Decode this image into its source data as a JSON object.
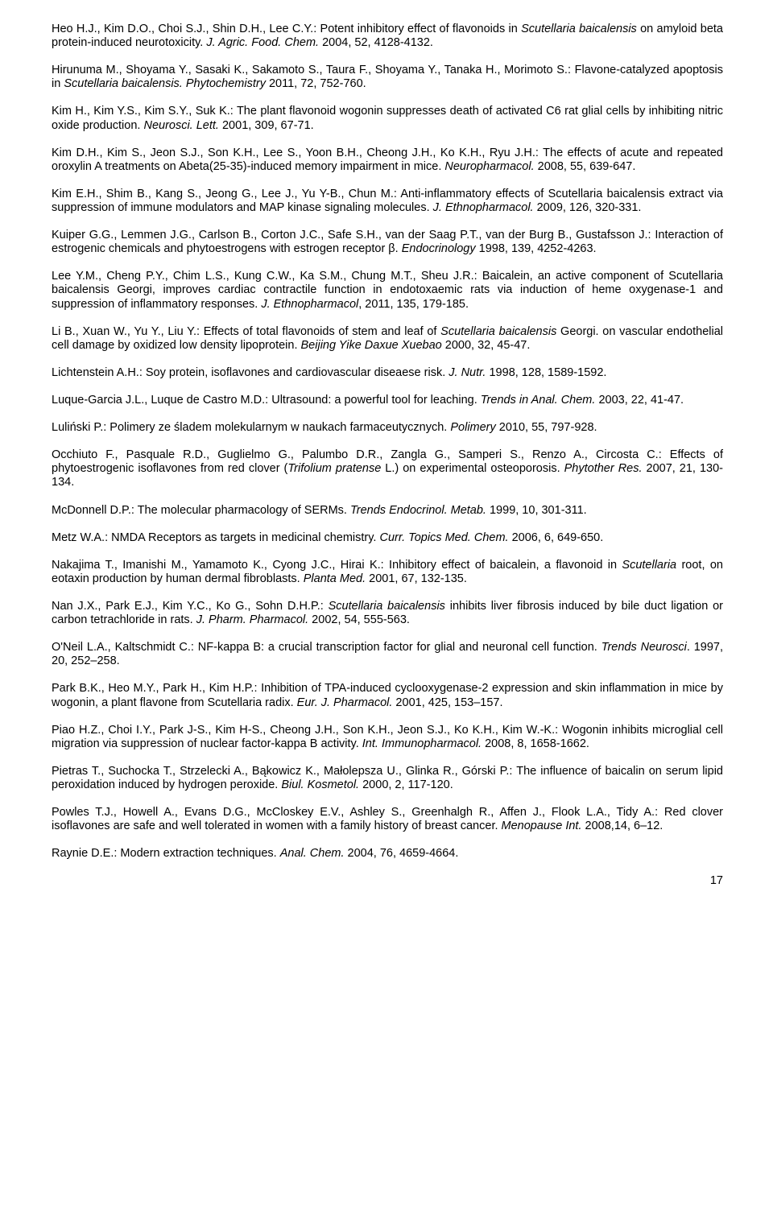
{
  "refs": [
    {
      "html": "Heo H.J., Kim D.O., Choi S.J., Shin D.H., Lee C.Y.: Potent inhibitory effect of flavonoids in <span class='italic'>Scutellaria baicalensis</span> on amyloid beta protein-induced neurotoxicity. <span class='italic'>J. Agric. Food. Chem.</span> 2004, 52, 4128-4132."
    },
    {
      "html": "Hirunuma M., Shoyama Y., Sasaki K., Sakamoto S., Taura F., Shoyama Y., Tanaka H., Morimoto S.: Flavone-catalyzed apoptosis in <span class='italic'>Scutellaria baicalensis. Phytochemistry</span> 2011, 72, 752-760."
    },
    {
      "html": "Kim H., Kim Y.S., Kim S.Y., Suk K.: The plant flavonoid wogonin suppresses death of activated C6 rat glial cells by inhibiting nitric oxide production. <span class='italic'>Neurosci. Lett.</span> 2001, 309, 67-71."
    },
    {
      "html": "Kim D.H., Kim S., Jeon S.J., Son K.H., Lee S., Yoon B.H., Cheong J.H., Ko K.H., Ryu J.H.: The effects of acute and repeated oroxylin A treatments on Abeta(25-35)-induced memory impairment in mice. <span class='italic'>Neuropharmacol.</span> 2008, 55, 639-647."
    },
    {
      "html": "Kim E.H., Shim B., Kang S., Jeong G., Lee J., Yu Y-B., Chun M.: Anti-inflammatory effects of Scutellaria baicalensis extract via suppression of immune modulators and MAP kinase signaling molecules. <span class='italic'>J. Ethnopharmacol.</span> 2009, 126, 320-331."
    },
    {
      "html": "Kuiper G.G., Lemmen J.G., Carlson B., Corton J.C., Safe S.H., van der Saag P.T., van der Burg B., Gustafsson J.: Interaction of estrogenic chemicals and phytoestrogens with estrogen receptor β. <span class='italic'>Endocrinology</span> 1998, 139, 4252-4263."
    },
    {
      "html": "Lee Y.M., Cheng P.Y., Chim L.S., Kung C.W., Ka S.M., Chung M.T., Sheu J.R.: Baicalein, an active component of Scutellaria baicalensis Georgi, improves cardiac contractile function in endotoxaemic rats via induction of heme oxygenase-1 and suppression of inflammatory responses. <span class='italic'>J. Ethnopharmacol</span>, 2011, 135, 179-185."
    },
    {
      "html": "Li B., Xuan W., Yu Y., Liu Y.: Effects of total flavonoids of stem and leaf of <span class='italic'>Scutellaria baicalensis</span> Georgi. on vascular endothelial cell damage by oxidized low density lipoprotein. <span class='italic'>Beijing Yike Daxue Xuebao</span> 2000, 32, 45-47."
    },
    {
      "html": "Lichtenstein A.H.: Soy protein, isoflavones and cardiovascular diseaese risk. <span class='italic'>J. Nutr.</span> 1998, 128, 1589-1592."
    },
    {
      "html": "Luque-Garcia J.L., Luque de Castro M.D.: Ultrasound: a powerful tool for leaching. <span class='italic'>Trends in Anal. Chem.</span>  2003, 22, 41-47."
    },
    {
      "html": "Luliński P.: Polimery ze śladem molekularnym w naukach farmaceutycznych. <span class='italic'>Polimery</span> 2010, 55, 797-928."
    },
    {
      "html": "Occhiuto F., Pasquale R.D., Guglielmo G., Palumbo D.R., Zangla G., Samperi S., Renzo A., Circosta C.: Effects of phytoestrogenic isoflavones from red clover (<span class='italic'>Trifolium pratense</span> L.) on experimental osteoporosis. <span class='italic'>Phytother Res.</span> 2007, 21, 130-134."
    },
    {
      "html": "McDonnell D.P.: The molecular pharmacology of SERMs. <span class='italic'>Trends Endocrinol. Metab.</span> 1999, 10, 301-311."
    },
    {
      "html": "Metz W.A.: NMDA Receptors as targets in medicinal chemistry. <span class='italic'>Curr. Topics Med. Chem.</span> 2006, 6, 649-650."
    },
    {
      "html": "Nakajima T., Imanishi M., Yamamoto K., Cyong J.C., Hirai K.: Inhibitory effect of baicalein, a flavonoid in <span class='italic'>Scutellaria</span> root, on eotaxin production by human dermal fibroblasts. <span class='italic'>Planta Med.</span> 2001, 67, 132-135."
    },
    {
      "html": "Nan J.X., Park E.J., Kim Y.C., Ko G., Sohn D.H.P.:  <span class='italic'>Scutellaria baicalensis</span> inhibits liver fibrosis induced by bile duct ligation or carbon tetrachloride in rats. <span class='italic'>J. Pharm. Pharmacol.</span> 2002, 54, 555-563."
    },
    {
      "html": "O'Neil L.A., Kaltschmidt C.: NF-kappa B: a crucial transcription factor for glial and neuronal cell function. <span class='italic'>Trends Neurosci</span>. 1997, 20, 252–258."
    },
    {
      "html": "Park B.K., Heo M.Y., Park H., Kim H.P.: Inhibition of TPA-induced cyclooxygenase-2 expression and skin inflammation in mice by wogonin, a plant flavone from Scutellaria radix. <span class='italic'>Eur. J. Pharmacol.</span> 2001, 425, 153–157."
    },
    {
      "html": "Piao H.Z., Choi I.Y., Park J-S., Kim H-S., Cheong J.H., Son K.H., Jeon S.J., Ko K.H., Kim W.-K.: Wogonin inhibits microglial cell migration via suppression of nuclear factor-kappa B activity. <span class='italic'>Int. Immunopharmacol.</span> 2008, 8, 1658-1662."
    },
    {
      "html": "Pietras T., Suchocka T., Strzelecki A., Bąkowicz K., Małolepsza U., Glinka R., Górski P.: The influence of baicalin on serum lipid peroxidation induced by hydrogen peroxide. <span class='italic'>Biul. Kosmetol.</span> 2000, 2, 117-120."
    },
    {
      "html": "Powles T.J., Howell A., Evans D.G., McCloskey E.V., Ashley S., Greenhalgh R., Affen J., Flook L.A., Tidy A.: Red clover isoflavones are safe and well tolerated in women with a family history of breast cancer. <span class='italic'>Menopause Int.</span> 2008,14, 6–12."
    },
    {
      "html": "Raynie D.E.: Modern extraction techniques. <span class='italic'>Anal. Chem.</span> 2004, 76, 4659-4664."
    }
  ],
  "page_number": "17"
}
